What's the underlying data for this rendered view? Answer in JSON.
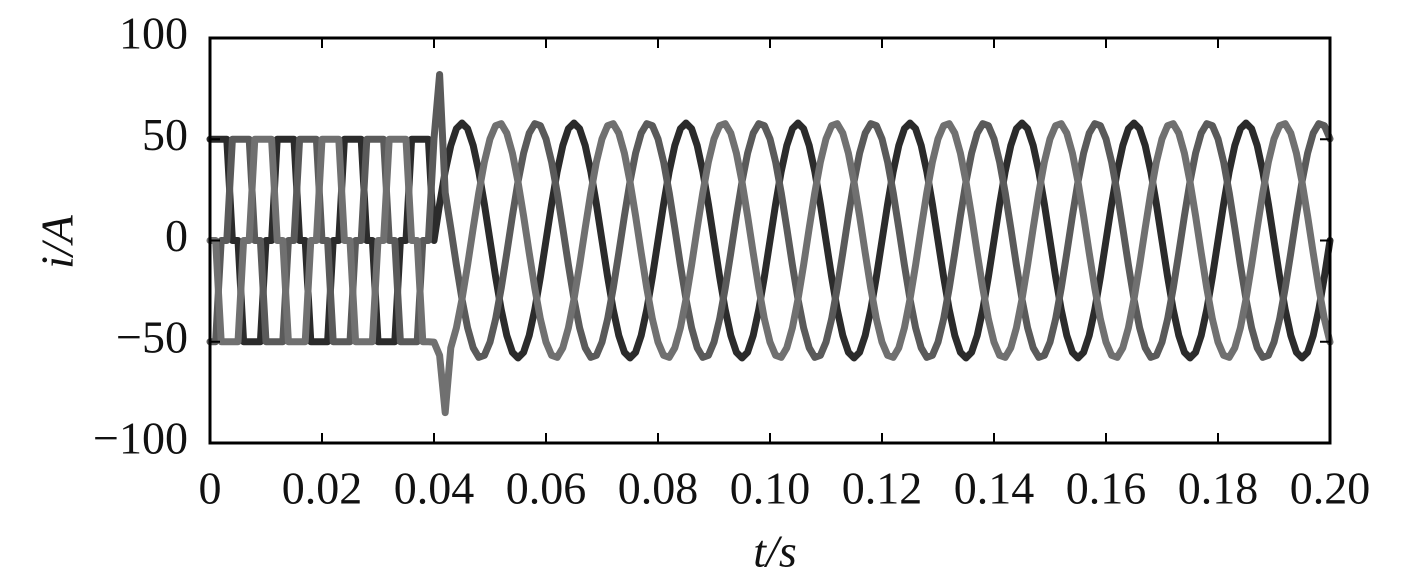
{
  "chart_data": {
    "type": "line",
    "xlabel": "t/s",
    "ylabel": "i/A",
    "xlim": [
      0,
      0.2
    ],
    "ylim": [
      -100,
      100
    ],
    "xticks": [
      0,
      0.02,
      0.04,
      0.06,
      0.08,
      {
        "value": 0.1,
        "label": "0.10"
      },
      0.12,
      0.14,
      0.16,
      0.18,
      {
        "value": 0.2,
        "label": "0.20"
      }
    ],
    "yticks": [
      {
        "value": -100,
        "label": "−100"
      },
      {
        "value": -50,
        "label": "−50"
      },
      0,
      50,
      100
    ],
    "x": [
      0,
      0.001,
      0.002,
      0.003,
      0.004,
      0.005,
      0.006,
      0.007,
      0.008,
      0.009,
      0.01,
      0.011,
      0.012,
      0.013,
      0.014,
      0.015,
      0.016,
      0.017,
      0.018,
      0.019,
      0.02,
      0.021,
      0.022,
      0.023,
      0.024,
      0.025,
      0.026,
      0.027,
      0.028,
      0.029,
      0.03,
      0.031,
      0.032,
      0.033,
      0.034,
      0.035,
      0.036,
      0.037,
      0.038,
      0.039,
      0.04,
      0.041,
      0.042,
      0.043,
      0.044,
      0.045,
      0.046,
      0.047,
      0.048,
      0.049,
      0.05,
      0.051,
      0.052,
      0.053,
      0.054,
      0.055,
      0.056,
      0.057,
      0.058,
      0.059,
      0.06,
      0.061,
      0.062,
      0.063,
      0.064,
      0.065,
      0.066,
      0.067,
      0.068,
      0.069,
      0.07,
      0.071,
      0.072,
      0.073,
      0.074,
      0.075,
      0.076,
      0.077,
      0.078,
      0.079,
      0.08,
      0.081,
      0.082,
      0.083,
      0.084,
      0.085,
      0.086,
      0.087,
      0.088,
      0.089,
      0.09,
      0.091,
      0.092,
      0.093,
      0.094,
      0.095,
      0.096,
      0.097,
      0.098,
      0.099,
      0.1,
      0.101,
      0.102,
      0.103,
      0.104,
      0.105,
      0.106,
      0.107,
      0.108,
      0.109,
      0.11,
      0.111,
      0.112,
      0.113,
      0.114,
      0.115,
      0.116,
      0.117,
      0.118,
      0.119,
      0.12,
      0.121,
      0.122,
      0.123,
      0.124,
      0.125,
      0.126,
      0.127,
      0.128,
      0.129,
      0.13,
      0.131,
      0.132,
      0.133,
      0.134,
      0.135,
      0.136,
      0.137,
      0.138,
      0.139,
      0.14,
      0.141,
      0.142,
      0.143,
      0.144,
      0.145,
      0.146,
      0.147,
      0.148,
      0.149,
      0.15,
      0.151,
      0.152,
      0.153,
      0.154,
      0.155,
      0.156,
      0.157,
      0.158,
      0.159,
      0.16,
      0.161,
      0.162,
      0.163,
      0.164,
      0.165,
      0.166,
      0.167,
      0.168,
      0.169,
      0.17,
      0.171,
      0.172,
      0.173,
      0.174,
      0.175,
      0.176,
      0.177,
      0.178,
      0.179,
      0.18,
      0.181,
      0.182,
      0.183,
      0.184,
      0.185,
      0.186,
      0.187,
      0.188,
      0.189,
      0.19,
      0.191,
      0.192,
      0.193,
      0.194,
      0.195,
      0.196,
      0.197,
      0.198,
      0.199,
      0.2
    ],
    "series": [
      {
        "color": "#2b2b2b",
        "values": [
          50,
          50,
          50,
          50,
          0,
          0,
          -50,
          -50,
          -50,
          -50,
          0,
          0,
          50,
          50,
          50,
          50,
          0,
          0,
          -50,
          -50,
          -50,
          -50,
          0,
          0,
          50,
          50,
          50,
          50,
          0,
          0,
          -50,
          -50,
          -50,
          -50,
          0,
          0,
          50,
          50,
          50,
          50,
          0,
          17.9,
          34.1,
          46.9,
          55.2,
          58,
          55.2,
          46.9,
          34.1,
          17.9,
          0,
          -17.9,
          -34.1,
          -46.9,
          -55.2,
          -58,
          -55.2,
          -46.9,
          -34.1,
          -17.9,
          0,
          17.9,
          34.1,
          46.9,
          55.2,
          58,
          55.2,
          46.9,
          34.1,
          17.9,
          0,
          -17.9,
          -34.1,
          -46.9,
          -55.2,
          -58,
          -55.2,
          -46.9,
          -34.1,
          -17.9,
          0,
          17.9,
          34.1,
          46.9,
          55.2,
          58,
          55.2,
          46.9,
          34.1,
          17.9,
          0,
          -17.9,
          -34.1,
          -46.9,
          -55.2,
          -58,
          -55.2,
          -46.9,
          -34.1,
          -17.9,
          0,
          17.9,
          34.1,
          46.9,
          55.2,
          58,
          55.2,
          46.9,
          34.1,
          17.9,
          0,
          -17.9,
          -34.1,
          -46.9,
          -55.2,
          -58,
          -55.2,
          -46.9,
          -34.1,
          -17.9,
          0,
          17.9,
          34.1,
          46.9,
          55.2,
          58,
          55.2,
          46.9,
          34.1,
          17.9,
          0,
          -17.9,
          -34.1,
          -46.9,
          -55.2,
          -58,
          -55.2,
          -46.9,
          -34.1,
          -17.9,
          0,
          17.9,
          34.1,
          46.9,
          55.2,
          58,
          55.2,
          46.9,
          34.1,
          17.9,
          0,
          -17.9,
          -34.1,
          -46.9,
          -55.2,
          -58,
          -55.2,
          -46.9,
          -34.1,
          -17.9,
          0,
          17.9,
          34.1,
          46.9,
          55.2,
          58,
          55.2,
          46.9,
          34.1,
          17.9,
          0,
          -17.9,
          -34.1,
          -46.9,
          -55.2,
          -58,
          -55.2,
          -46.9,
          -34.1,
          -17.9,
          0,
          17.9,
          34.1,
          46.9,
          55.2,
          58,
          55.2,
          46.9,
          34.1,
          17.9,
          0,
          -17.9,
          -34.1,
          -46.9,
          -55.2,
          -58,
          -55.2,
          -46.9,
          -34.1,
          -17.9,
          0
        ]
      },
      {
        "color": "#5a5a5a",
        "values": [
          -50,
          -50,
          0,
          0,
          50,
          50,
          50,
          50,
          0,
          0,
          -50,
          -50,
          -50,
          -50,
          0,
          0,
          50,
          50,
          50,
          50,
          0,
          0,
          -50,
          -50,
          -50,
          -50,
          0,
          0,
          50,
          50,
          50,
          50,
          0,
          0,
          -50,
          -50,
          -50,
          -50,
          0,
          0,
          50.2,
          82,
          23.6,
          6.1,
          -12.1,
          -29,
          -43.1,
          -53,
          -57.7,
          -56.7,
          -50.2,
          -38.8,
          -23.6,
          -6.1,
          12.1,
          29,
          43.1,
          53,
          57.7,
          56.7,
          50.2,
          38.8,
          23.6,
          6.1,
          -12.1,
          -29,
          -43.1,
          -53,
          -57.7,
          -56.7,
          -50.2,
          -38.8,
          -23.6,
          -6.1,
          12.1,
          29,
          43.1,
          53,
          57.7,
          56.7,
          50.2,
          38.8,
          23.6,
          6.1,
          -12.1,
          -29,
          -43.1,
          -53,
          -57.7,
          -56.7,
          -50.2,
          -38.8,
          -23.6,
          -6.1,
          12.1,
          29,
          43.1,
          53,
          57.7,
          56.7,
          50.2,
          38.8,
          23.6,
          6.1,
          -12.1,
          -29,
          -43.1,
          -53,
          -57.7,
          -56.7,
          -50.2,
          -38.8,
          -23.6,
          -6.1,
          12.1,
          29,
          43.1,
          53,
          57.7,
          56.7,
          50.2,
          38.8,
          23.6,
          6.1,
          -12.1,
          -29,
          -43.1,
          -53,
          -57.7,
          -56.7,
          -50.2,
          -38.8,
          -23.6,
          -6.1,
          12.1,
          29,
          43.1,
          53,
          57.7,
          56.7,
          50.2,
          38.8,
          23.6,
          6.1,
          -12.1,
          -29,
          -43.1,
          -53,
          -57.7,
          -56.7,
          -50.2,
          -38.8,
          -23.6,
          -6.1,
          12.1,
          29,
          43.1,
          53,
          57.7,
          56.7,
          50.2,
          38.8,
          23.6,
          6.1,
          -12.1,
          -29,
          -43.1,
          -53,
          -57.7,
          -56.7,
          -50.2,
          -38.8,
          -23.6,
          -6.1,
          12.1,
          29,
          43.1,
          53,
          57.7,
          56.7,
          50.2,
          38.8,
          23.6,
          6.1,
          -12.1,
          -29,
          -43.1,
          -53,
          -57.7,
          -56.7,
          -50.2,
          -38.8,
          -23.6,
          -6.1,
          12.1,
          29,
          43.1,
          53,
          57.7,
          56.7,
          50.2
        ]
      },
      {
        "color": "#707070",
        "values": [
          0,
          0,
          -50,
          -50,
          -50,
          -50,
          0,
          0,
          50,
          50,
          50,
          50,
          0,
          0,
          -50,
          -50,
          -50,
          -50,
          0,
          0,
          50,
          50,
          50,
          50,
          0,
          0,
          -50,
          -50,
          -50,
          -50,
          0,
          0,
          50,
          50,
          50,
          50,
          0,
          0,
          -50,
          -50,
          -50.2,
          -56.7,
          -85,
          -53,
          -43.1,
          -29,
          -12.1,
          6.1,
          23.6,
          38.8,
          50.2,
          56.7,
          57.7,
          53,
          43.1,
          29,
          12.1,
          -6.1,
          -23.6,
          -38.8,
          -50.2,
          -56.7,
          -57.7,
          -53,
          -43.1,
          -29,
          -12.1,
          6.1,
          23.6,
          38.8,
          50.2,
          56.7,
          57.7,
          53,
          43.1,
          29,
          12.1,
          -6.1,
          -23.6,
          -38.8,
          -50.2,
          -56.7,
          -57.7,
          -53,
          -43.1,
          -29,
          -12.1,
          6.1,
          23.6,
          38.8,
          50.2,
          56.7,
          57.7,
          53,
          43.1,
          29,
          12.1,
          -6.1,
          -23.6,
          -38.8,
          -50.2,
          -56.7,
          -57.7,
          -53,
          -43.1,
          -29,
          -12.1,
          6.1,
          23.6,
          38.8,
          50.2,
          56.7,
          57.7,
          53,
          43.1,
          29,
          12.1,
          -6.1,
          -23.6,
          -38.8,
          -50.2,
          -56.7,
          -57.7,
          -53,
          -43.1,
          -29,
          -12.1,
          6.1,
          23.6,
          38.8,
          50.2,
          56.7,
          57.7,
          53,
          43.1,
          29,
          12.1,
          -6.1,
          -23.6,
          -38.8,
          -50.2,
          -56.7,
          -57.7,
          -53,
          -43.1,
          -29,
          -12.1,
          6.1,
          23.6,
          38.8,
          50.2,
          56.7,
          57.7,
          53,
          43.1,
          29,
          12.1,
          -6.1,
          -23.6,
          -38.8,
          -50.2,
          -56.7,
          -57.7,
          -53,
          -43.1,
          -29,
          -12.1,
          6.1,
          23.6,
          38.8,
          50.2,
          56.7,
          57.7,
          53,
          43.1,
          29,
          12.1,
          -6.1,
          -23.6,
          -38.8,
          -50.2,
          -56.7,
          -57.7,
          -53,
          -43.1,
          -29,
          -12.1,
          6.1,
          23.6,
          38.8,
          50.2,
          56.7,
          57.7,
          53,
          43.1,
          29,
          12.1,
          -6.1,
          -23.6,
          -38.8,
          -50.2
        ]
      }
    ]
  }
}
